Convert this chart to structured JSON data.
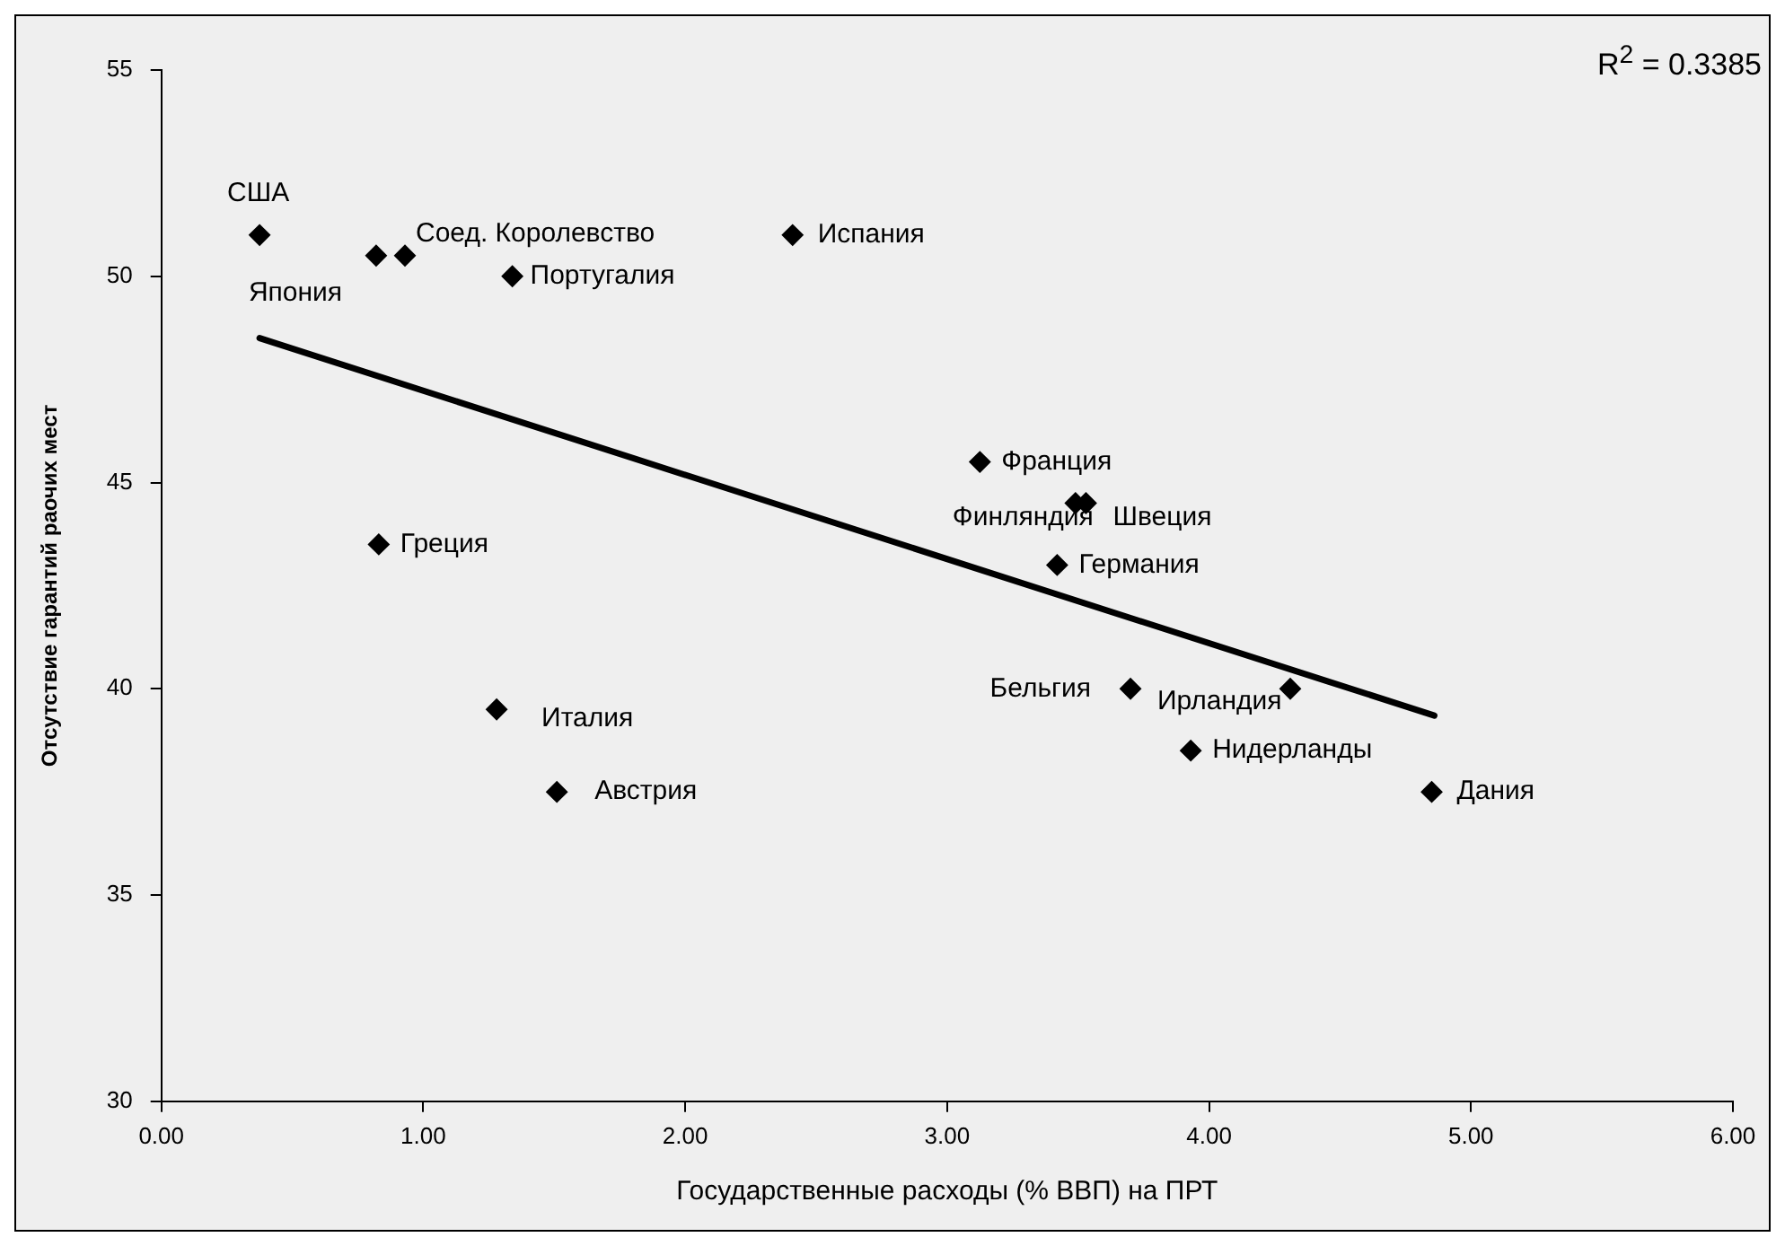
{
  "chart_data": {
    "type": "scatter",
    "xlabel": "Государственные расходы (% ВВП) на ПРТ",
    "ylabel": "Отсутствие гарантий раочих мест",
    "xlim": [
      0,
      6
    ],
    "xticks": [
      {
        "value": 0,
        "label": "0.00"
      },
      {
        "value": 1,
        "label": "1.00"
      },
      {
        "value": 2,
        "label": "2.00"
      },
      {
        "value": 3,
        "label": "3.00"
      },
      {
        "value": 4,
        "label": "4.00"
      },
      {
        "value": 5,
        "label": "5.00"
      },
      {
        "value": 6,
        "label": "6.00"
      }
    ],
    "ylim": [
      30,
      55
    ],
    "yticks": [
      30,
      35,
      40,
      45,
      50,
      55
    ],
    "grid": false,
    "legend": false,
    "series": [
      {
        "marker": "diamond",
        "color": "#000000",
        "x": [
          0.375,
          0.82,
          0.93,
          1.34,
          2.41,
          3.125,
          3.49,
          3.53,
          3.42,
          3.7,
          4.31,
          3.93,
          4.85,
          0.83,
          1.28,
          1.51
        ],
        "values": [
          51,
          50.5,
          50.5,
          50,
          51,
          45.5,
          44.5,
          44.5,
          43,
          40,
          40,
          38.5,
          37.5,
          43.5,
          39.5,
          37.5
        ]
      },
      {
        "type": "line",
        "marker": "none",
        "color": "#000000",
        "x": [
          0.375,
          4.86
        ],
        "values": [
          48.5,
          39.35
        ]
      }
    ],
    "annotations": [
      "R$^{2}$ = 0.3385",
      {
        "text": "США",
        "x": 0.375,
        "y": 51
      },
      {
        "text": "Япония",
        "x": 0.82,
        "y": 50.5
      },
      {
        "text": "Соед. Королевство",
        "x": 0.93,
        "y": 50.5
      },
      {
        "text": "Португалия",
        "x": 1.34,
        "y": 50
      },
      {
        "text": "Испания",
        "x": 2.41,
        "y": 51
      },
      {
        "text": "Франция",
        "x": 3.125,
        "y": 45.5
      },
      {
        "text": "Финляндия",
        "x": 3.49,
        "y": 44.5
      },
      {
        "text": "Швеция",
        "x": 3.53,
        "y": 44.5
      },
      {
        "text": "Германия",
        "x": 3.42,
        "y": 43
      },
      {
        "text": "Бельгия",
        "x": 3.7,
        "y": 40
      },
      {
        "text": "Ирландия",
        "x": 4.31,
        "y": 40
      },
      {
        "text": "Нидерланды",
        "x": 3.93,
        "y": 38.5
      },
      {
        "text": "Дания",
        "x": 4.85,
        "y": 37.5
      },
      {
        "text": "Греция",
        "x": 0.83,
        "y": 43.5
      },
      {
        "text": "Италия",
        "x": 1.28,
        "y": 39.5
      },
      {
        "text": "Австрия",
        "x": 1.51,
        "y": 37.5
      }
    ]
  }
}
